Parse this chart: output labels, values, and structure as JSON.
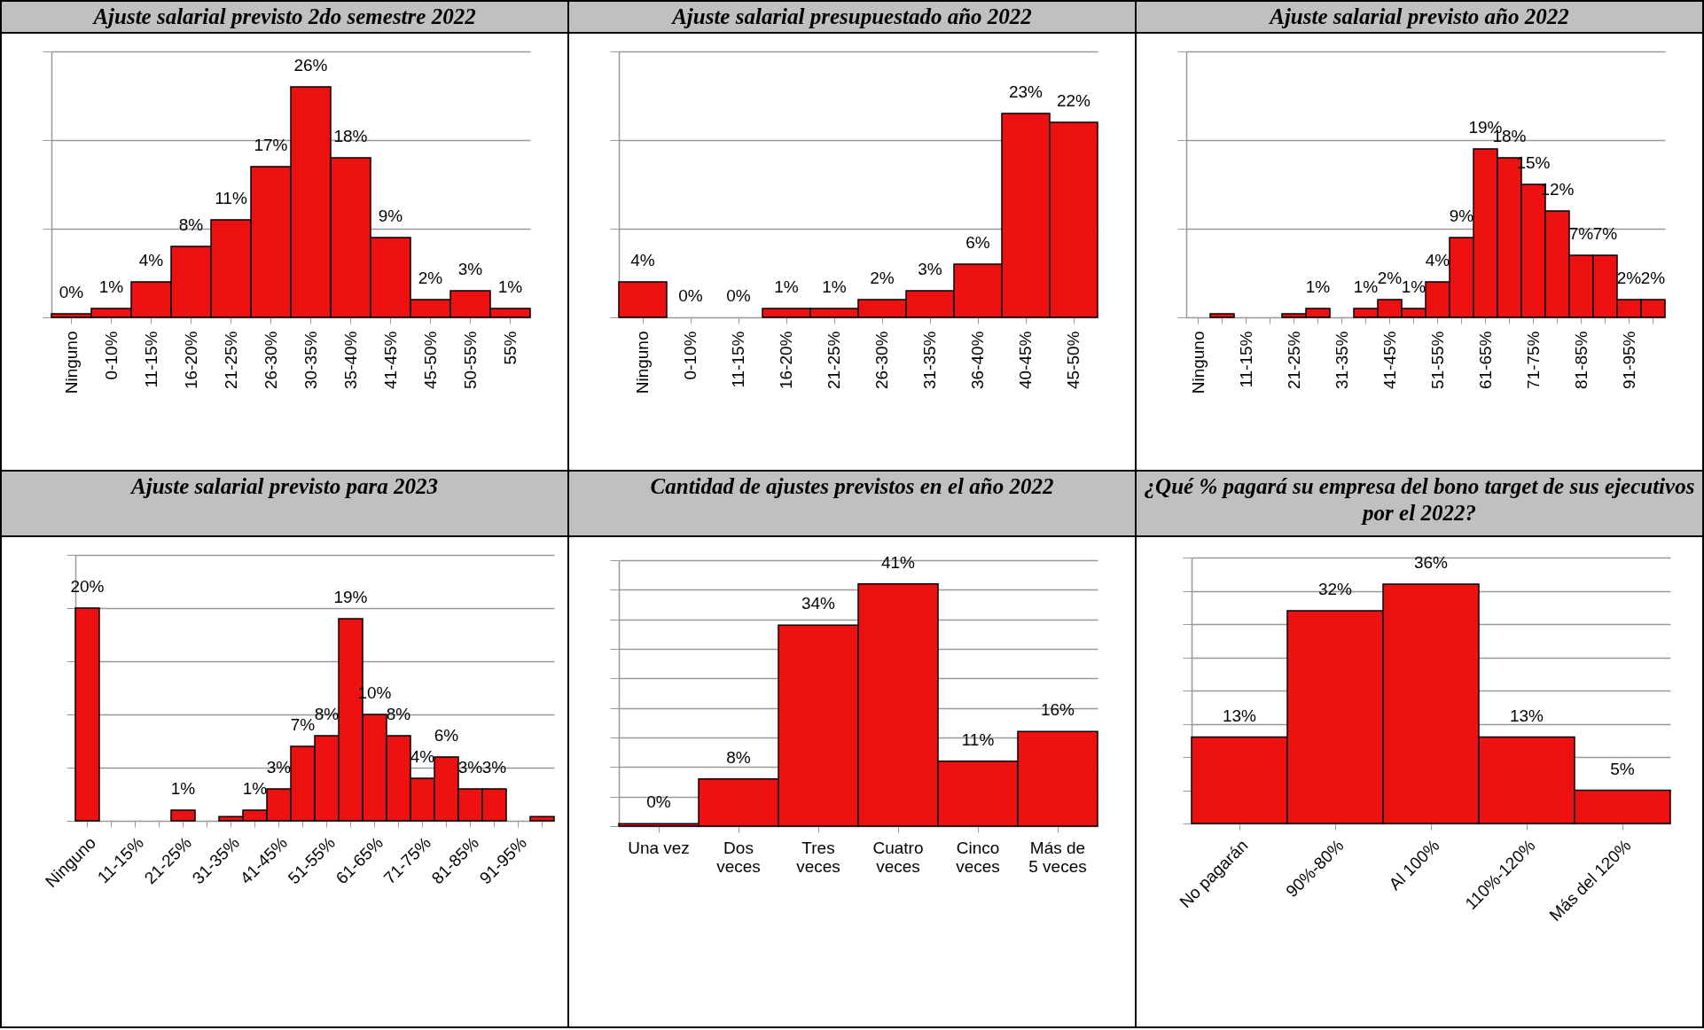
{
  "chart_data": [
    {
      "type": "bar",
      "title": "Ajuste salarial previsto 2do semestre 2022",
      "categories": [
        "Ninguno",
        "0-10%",
        "11-15%",
        "16-20%",
        "21-25%",
        "26-30%",
        "30-35%",
        "35-40%",
        "41-45%",
        "45-50%",
        "50-55%",
        "55%"
      ],
      "values": [
        0.4,
        1,
        4,
        8,
        11,
        17,
        26,
        18,
        9,
        2,
        3,
        1
      ],
      "value_labels": [
        "0%",
        "1%",
        "4%",
        "8%",
        "11%",
        "17%",
        "26%",
        "18%",
        "9%",
        "2%",
        "3%",
        "1%"
      ],
      "color": "#ee1111",
      "ylim": [
        0,
        30
      ],
      "yticks": [
        {
          "value": 0,
          "label": null
        },
        {
          "value": 10,
          "label": null
        },
        {
          "value": 20,
          "label": null
        },
        {
          "value": 30,
          "label": null
        }
      ],
      "grid": "y",
      "tick_labels": "x"
    },
    {
      "type": "bar",
      "title": "Ajuste salarial presupuestado año 2022",
      "categories": [
        "Ninguno",
        "0-10%",
        "11-15%",
        "16-20%",
        "21-25%",
        "26-30%",
        "31-35%",
        "36-40%",
        "40-45%",
        "45-50%"
      ],
      "values": [
        4,
        0,
        0,
        1,
        1,
        2,
        3,
        6,
        23,
        22
      ],
      "value_labels": [
        "4%",
        "0%",
        "0%",
        "1%",
        "1%",
        "2%",
        "3%",
        "6%",
        "23%",
        "22%"
      ],
      "color": "#ee1111",
      "ylim": [
        0,
        30
      ],
      "yticks": [
        {
          "value": 0,
          "label": null
        },
        {
          "value": 10,
          "label": null
        },
        {
          "value": 20,
          "label": null
        },
        {
          "value": 30,
          "label": null
        }
      ],
      "grid": "y",
      "tick_labels": "x"
    },
    {
      "type": "bar",
      "title": "Ajuste salarial previsto año 2022",
      "categories": [
        "Ninguno",
        null,
        "11-15%",
        null,
        "21-25%",
        null,
        "31-35%",
        null,
        "41-45%",
        null,
        "51-55%",
        null,
        "61-65%",
        null,
        "71-75%",
        null,
        "81-85%",
        null,
        "91-95%",
        null
      ],
      "values": [
        null,
        0.4,
        null,
        null,
        0.4,
        1,
        null,
        1,
        2,
        1,
        4,
        9,
        19,
        18,
        15,
        12,
        7,
        7,
        2,
        2
      ],
      "value_labels": [
        null,
        null,
        null,
        null,
        null,
        "1%",
        null,
        "1%",
        "2%",
        "1%",
        "4%",
        "9%",
        "19%",
        "18%",
        "15%",
        "12%",
        "7%",
        "7%",
        "2%",
        "2%"
      ],
      "color": "#ee1111",
      "ylim": [
        0,
        30
      ],
      "yticks": [
        {
          "value": 0,
          "label": null
        },
        {
          "value": 10,
          "label": null
        },
        {
          "value": 20,
          "label": null
        },
        {
          "value": 30,
          "label": null
        }
      ],
      "grid": "y",
      "tick_labels": "x"
    },
    {
      "type": "bar",
      "title": "Ajuste salarial previsto para 2023",
      "categories": [
        "Ninguno",
        null,
        "11-15%",
        null,
        "21-25%",
        null,
        "31-35%",
        null,
        "41-45%",
        null,
        "51-55%",
        null,
        "61-65%",
        null,
        "71-75%",
        null,
        "81-85%",
        null,
        "91-95%",
        null
      ],
      "values": [
        20,
        null,
        null,
        null,
        1,
        null,
        0.4,
        1,
        3,
        7,
        8,
        19,
        10,
        8,
        4,
        6,
        3,
        3,
        null,
        0.4
      ],
      "value_labels": [
        "20%",
        null,
        null,
        null,
        "1%",
        null,
        null,
        "1%",
        "3%",
        "7%",
        "8%",
        "19%",
        "10%",
        "8%",
        "4%",
        "6%",
        "3%",
        "3%",
        null,
        null
      ],
      "color": "#ee1111",
      "ylim": [
        0,
        25
      ],
      "yticks": [
        {
          "value": 0,
          "label": null
        },
        {
          "value": 5,
          "label": null
        },
        {
          "value": 10,
          "label": null
        },
        {
          "value": 15,
          "label": null
        },
        {
          "value": 20,
          "label": null
        },
        {
          "value": 25,
          "label": null
        }
      ],
      "grid": "y",
      "tick_labels": "x"
    },
    {
      "type": "bar",
      "title": "Cantidad de ajustes previstos en el año 2022",
      "categories": [
        "Una vez",
        "Dos veces",
        "Tres veces",
        "Cuatro veces",
        "Cinco veces",
        "Más de 5 veces"
      ],
      "values": [
        0.4,
        8,
        34,
        41,
        11,
        16
      ],
      "value_labels": [
        "0%",
        "8%",
        "34%",
        "41%",
        "11%",
        "16%"
      ],
      "color": "#ee1111",
      "ylim": [
        0,
        45
      ],
      "grid": "y",
      "tick_labels": "x"
    },
    {
      "type": "bar",
      "title": "¿Qué % pagará su empresa del bono target de sus ejecutivos por el 2022?",
      "categories": [
        "No pagarán",
        "90%-80%",
        "Al 100%",
        "110%-120%",
        "Más del 120%"
      ],
      "values": [
        13,
        32,
        36,
        13,
        5
      ],
      "value_labels": [
        "13%",
        "32%",
        "36%",
        "13%",
        "5%"
      ],
      "color": "#ee1111",
      "ylim": [
        0,
        40
      ],
      "grid": "y",
      "tick_labels": "x"
    }
  ]
}
